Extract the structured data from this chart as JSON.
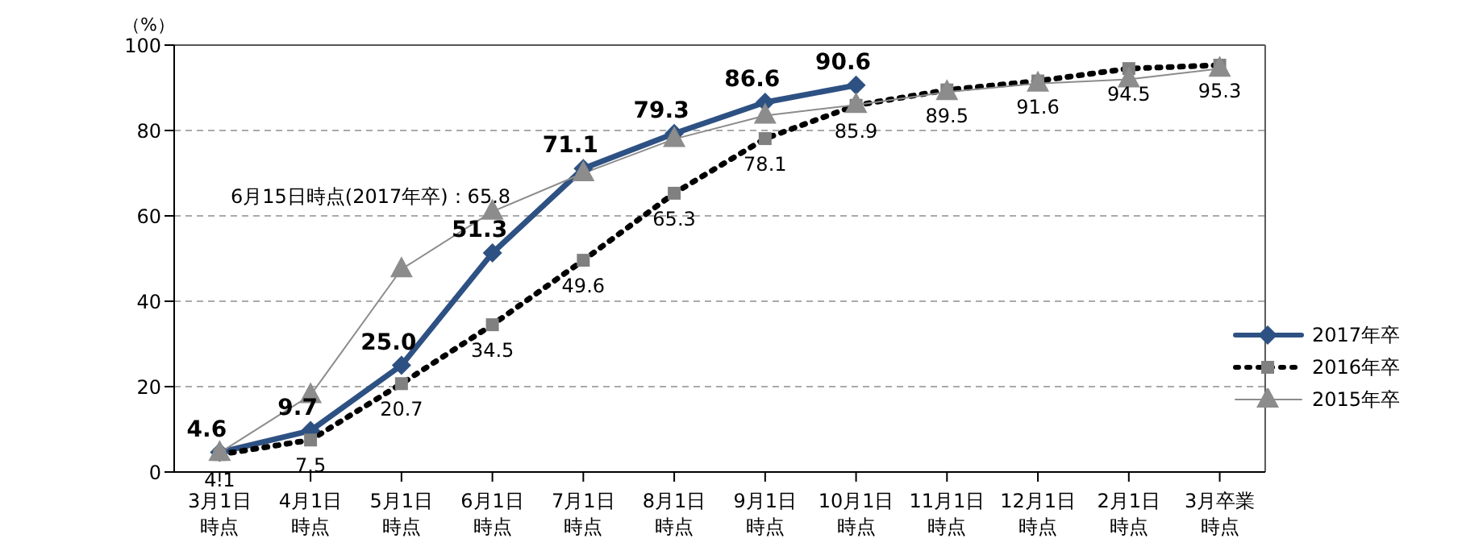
{
  "chart_data": {
    "type": "line",
    "ylabel": "（%）",
    "categories": [
      "3月1日時点",
      "4月1日時点",
      "5月1日時点",
      "6月1日時点",
      "7月1日時点",
      "8月1日時点",
      "9月1日時点",
      "10月1日時点",
      "11月1日時点",
      "12月1日時点",
      "2月1日時点",
      "3月卒業時点"
    ],
    "series": [
      {
        "name": "2017年卒",
        "color": "#2e5183",
        "marker": "diamond",
        "line_style": "solid",
        "values": [
          4.6,
          9.7,
          25.0,
          51.3,
          71.1,
          79.3,
          86.6,
          90.6,
          null,
          null,
          null,
          null
        ],
        "value_labels": [
          "4.6",
          "9.7",
          "25.0",
          "51.3",
          "71.1",
          "79.3",
          "86.6",
          "90.6",
          null,
          null,
          null,
          null
        ]
      },
      {
        "name": "2016年卒",
        "color": "#000000",
        "marker": "square",
        "line_style": "dotted",
        "values": [
          4.1,
          7.5,
          20.7,
          34.5,
          49.6,
          65.3,
          78.1,
          85.9,
          89.5,
          91.6,
          94.5,
          95.3
        ],
        "value_labels": [
          "4.1",
          "7.5",
          "20.7",
          "34.5",
          "49.6",
          "65.3",
          "78.1",
          "85.9",
          "89.5",
          "91.6",
          "94.5",
          "95.3"
        ]
      },
      {
        "name": "2015年卒",
        "color": "#8c8c8c",
        "marker": "triangle",
        "line_style": "solid",
        "values": [
          4.5,
          18,
          47.5,
          61,
          70,
          78,
          83.5,
          86,
          89,
          91,
          92,
          94.5
        ]
      }
    ],
    "annotations": [
      "6月15日時点(2017年卒)：65.8"
    ],
    "ylim": [
      0,
      100
    ],
    "yticks": [
      0,
      20,
      40,
      60,
      80,
      100
    ],
    "grid": "y",
    "legend": "right"
  }
}
